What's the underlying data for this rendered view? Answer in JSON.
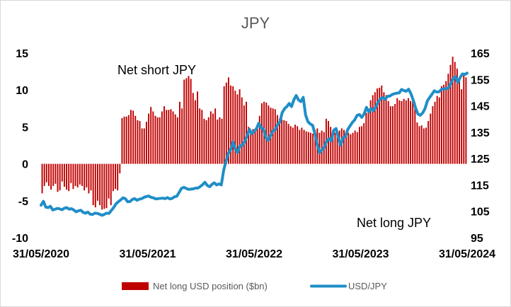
{
  "chart_data": {
    "type": "bar",
    "title": "JPY",
    "x_tick_labels": [
      "31/05/2020",
      "31/05/2021",
      "31/05/2022",
      "31/05/2023",
      "31/05/2024"
    ],
    "y_left": {
      "ticks": [
        15,
        10,
        5,
        0,
        -5,
        -10
      ],
      "ylim": [
        -10,
        15
      ]
    },
    "y_right": {
      "ticks": [
        165,
        155,
        145,
        135,
        125,
        115,
        105,
        95
      ],
      "ylim": [
        95,
        165
      ]
    },
    "annotations": [
      "Net short JPY",
      "Net long JPY"
    ],
    "grid": false,
    "legend_position": "bottom",
    "colors": {
      "bars": "#c00000",
      "line": "#1f8ec7"
    },
    "series": [
      {
        "name": "Net long USD position ($bn)",
        "type": "bar",
        "axis": "left",
        "values": [
          -4,
          -3,
          -2.5,
          -3,
          -3.5,
          -3,
          -2.7,
          -3.8,
          -3.6,
          -2.4,
          -3.1,
          -3.5,
          -3.7,
          -2.6,
          -3.4,
          -3,
          -3.2,
          -2.8,
          -3,
          -3.6,
          -3.2,
          -4,
          -3.6,
          -5.6,
          -5.9,
          -5,
          -5.6,
          -6.2,
          -6.1,
          -6,
          -4.7,
          -5.6,
          -3.7,
          -3.4,
          -3.6,
          -1.3,
          6.2,
          6.4,
          6.4,
          6.6,
          7.3,
          7.2,
          6.5,
          5.9,
          5.8,
          4.8,
          4.8,
          5.7,
          6.8,
          7.7,
          7.1,
          6.5,
          6.3,
          6.3,
          7.1,
          7.8,
          7.3,
          7.3,
          7.4,
          7.1,
          6.7,
          6.3,
          8.4,
          7.5,
          11.4,
          11.6,
          11.9,
          11.5,
          9.6,
          8.6,
          9.8,
          7.5,
          7.3,
          6.1,
          5.9,
          6.3,
          7.1,
          6.8,
          7.5,
          6,
          6.3,
          6.1,
          10.5,
          11,
          11.7,
          10.6,
          10.5,
          9.9,
          9.4,
          10.1,
          9,
          7.9,
          8.4,
          5,
          4.4,
          4.7,
          4.5,
          5.2,
          6.5,
          8.2,
          8.4,
          8.3,
          7.9,
          7.6,
          7.5,
          7.4,
          6.6,
          6.1,
          6,
          5.9,
          5.8,
          5.4,
          5.1,
          4.9,
          5.3,
          5.1,
          4.6,
          4.9,
          4.6,
          4.4,
          4.3,
          4.2,
          4.1,
          4.6,
          4.8,
          4.2,
          4.5,
          4.3,
          6.1,
          5.8,
          5,
          4.5,
          4.2,
          4.3,
          4.5,
          4.8,
          4.6,
          4.3,
          4.2,
          4,
          4.2,
          4.5,
          4.3,
          5,
          5.1,
          5.5,
          6.9,
          7.5,
          8.6,
          9.3,
          9.7,
          10.2,
          10.3,
          10.6,
          9.7,
          9.3,
          8.5,
          7.8,
          7.8,
          8.1,
          8.9,
          8.6,
          8.5,
          8.8,
          8.6,
          8.9,
          8.5,
          9,
          8.3,
          5.6,
          5.1,
          5.2,
          4.8,
          4.9,
          5.8,
          6.8,
          7.8,
          8.4,
          9.2,
          9,
          10.5,
          10.7,
          11.2,
          12.2,
          13.4,
          14.5,
          13.8,
          12.9,
          11.2,
          10.1,
          12.1,
          11.7
        ]
      },
      {
        "name": "USD/JPY",
        "type": "line",
        "axis": "right",
        "values": [
          107.3,
          108.8,
          106.6,
          106.4,
          106.9,
          105.5,
          105.8,
          106.1,
          105.9,
          105.6,
          106.2,
          106.4,
          105.8,
          106,
          105.5,
          104.8,
          105.2,
          105.4,
          104.6,
          104.3,
          104.7,
          103.9,
          103.8,
          104.3,
          104.2,
          103.9,
          103.5,
          103.8,
          104.3,
          104.2,
          105.3,
          106.4,
          107.8,
          108.6,
          109.3,
          110.1,
          109.8,
          108.6,
          108.7,
          109.5,
          109.8,
          109.2,
          109.6,
          109.8,
          110.3,
          110.6,
          110.8,
          110.3,
          110.1,
          109.7,
          109.8,
          109.9,
          110,
          109.8,
          110.2,
          109.7,
          109.9,
          110.5,
          110.7,
          112.2,
          113.7,
          114.1,
          113.7,
          113.3,
          113.4,
          113.5,
          113.8,
          113.8,
          114.4,
          115.1,
          116,
          114.8,
          114.3,
          115.2,
          115.8,
          115,
          115.4,
          115,
          120.5,
          124,
          127,
          128.4,
          131.3,
          128.6,
          127.3,
          129.8,
          130.1,
          131.5,
          133.7,
          136.1,
          134.4,
          135.3,
          136.3,
          138.4,
          136.7,
          136.2,
          133,
          131.9,
          133.6,
          135.4,
          135.9,
          137.8,
          138.8,
          142.4,
          143.9,
          144.7,
          145.9,
          144.7,
          147.3,
          148.9,
          147.2,
          146.6,
          148.2,
          141.5,
          139,
          138.1,
          137.6,
          134.4,
          130.3,
          127.2,
          128.3,
          129.3,
          131.7,
          132.6,
          131.7,
          135.7,
          136.4,
          133,
          130.1,
          132.8,
          133.4,
          136,
          137.4,
          138.7,
          139.7,
          141.4,
          141.7,
          140.6,
          141.9,
          144.4,
          142.7,
          143.9,
          143.1,
          144.6,
          146.4,
          147.7,
          148.1,
          147.5,
          148.6,
          148.7,
          149.3,
          149.6,
          149.8,
          149.9,
          151.2,
          150.8,
          150.5,
          151.3,
          149.6,
          147.1,
          144.1,
          141.9,
          141.4,
          142.3,
          143.9,
          146.8,
          148.2,
          149.4,
          150.7,
          150.2,
          150.3,
          151.2,
          151.4,
          151.5,
          151.7,
          153.4,
          155.2,
          156.1,
          153.8,
          155.7,
          157.1,
          156.9,
          157.4
        ]
      }
    ]
  }
}
